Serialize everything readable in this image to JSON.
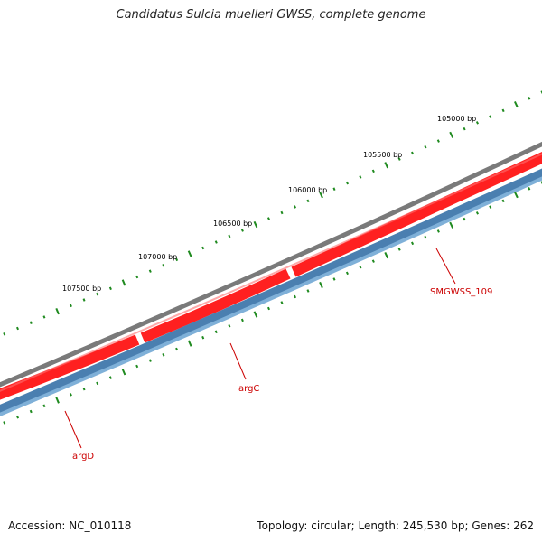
{
  "title": "Candidatus Sulcia muelleri GWSS, complete genome",
  "footer": {
    "accession": "Accession: NC_010118",
    "summary": "Topology: circular; Length: 245,530 bp; Genes: 262"
  },
  "colors": {
    "backbone": "#7a7a7a",
    "cds_outer": "#ff2020",
    "gene_outer": "#4a7fb0",
    "gene_inner": "#7fb0d8",
    "ticks": "#1f8a1f",
    "gene_label": "#cc0000",
    "scale_label": "#000000"
  },
  "scale_labels": [
    {
      "text": "105000 bp"
    },
    {
      "text": "105500 bp"
    },
    {
      "text": "106000 bp"
    },
    {
      "text": "106500 bp"
    },
    {
      "text": "107000 bp"
    },
    {
      "text": "107500 bp"
    }
  ],
  "genes": [
    {
      "name": "SMGWSS_109"
    },
    {
      "name": "argC"
    },
    {
      "name": "argD"
    }
  ]
}
